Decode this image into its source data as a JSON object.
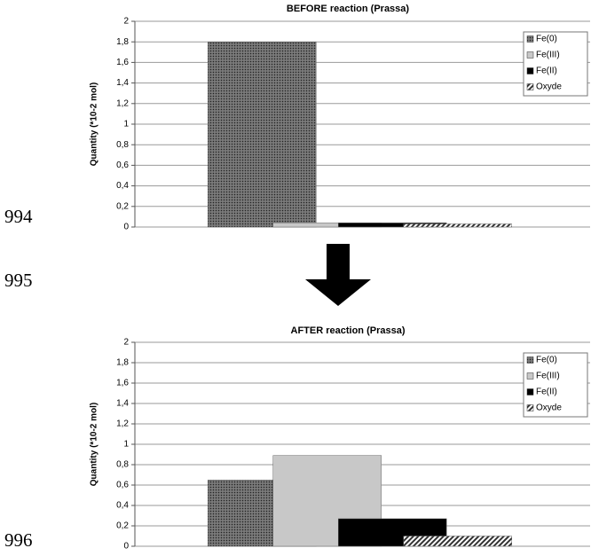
{
  "line_numbers": [
    "994",
    "995",
    "996"
  ],
  "chart_data": [
    {
      "type": "bar",
      "title": "BEFORE reaction (Prassa)",
      "y_label": "Quantity (*10-2 mol)",
      "categories": [
        null
      ],
      "series": [
        {
          "name": "Fe(0)",
          "color": "#555555",
          "pattern": "dotted",
          "values": [
            1.8
          ]
        },
        {
          "name": "Fe(III)",
          "color": "#c8c8c8",
          "values": [
            0.04
          ]
        },
        {
          "name": "Fe(II)",
          "color": "#000000",
          "values": [
            0.04
          ]
        },
        {
          "name": "Oxyde",
          "color": "#444444",
          "pattern": "hatched",
          "values": [
            0.03
          ]
        }
      ],
      "ylim": [
        0,
        2
      ],
      "yticks": [
        0,
        {
          "value": 0.2,
          "label": "0,2"
        },
        {
          "value": 0.4,
          "label": "0,4"
        },
        {
          "value": 0.6,
          "label": "0,6"
        },
        {
          "value": 0.8,
          "label": "0,8"
        },
        1,
        {
          "value": 1.2,
          "label": "1,2"
        },
        {
          "value": 1.4,
          "label": "1,4"
        },
        {
          "value": 1.6,
          "label": "1,6"
        },
        {
          "value": 1.8,
          "label": "1,8"
        },
        2
      ],
      "grid": true,
      "legend": "right"
    },
    {
      "type": "bar",
      "title": "AFTER reaction (Prassa)",
      "y_label": "Quantity (*10-2 mol)",
      "categories": [
        null
      ],
      "series": [
        {
          "name": "Fe(0)",
          "color": "#555555",
          "pattern": "dotted",
          "values": [
            0.65
          ]
        },
        {
          "name": "Fe(III)",
          "color": "#c8c8c8",
          "values": [
            0.89
          ]
        },
        {
          "name": "Fe(II)",
          "color": "#000000",
          "values": [
            0.27
          ]
        },
        {
          "name": "Oxyde",
          "color": "#444444",
          "pattern": "hatched",
          "values": [
            0.1
          ]
        }
      ],
      "ylim": [
        0,
        2
      ],
      "yticks": [
        0,
        {
          "value": 0.2,
          "label": "0,2"
        },
        {
          "value": 0.4,
          "label": "0,4"
        },
        {
          "value": 0.6,
          "label": "0,6"
        },
        {
          "value": 0.8,
          "label": "0,8"
        },
        1,
        {
          "value": 1.2,
          "label": "1,2"
        },
        {
          "value": 1.4,
          "label": "1,4"
        },
        {
          "value": 1.6,
          "label": "1,6"
        },
        {
          "value": 1.8,
          "label": "1,8"
        },
        2
      ],
      "grid": true,
      "legend": "right"
    }
  ]
}
